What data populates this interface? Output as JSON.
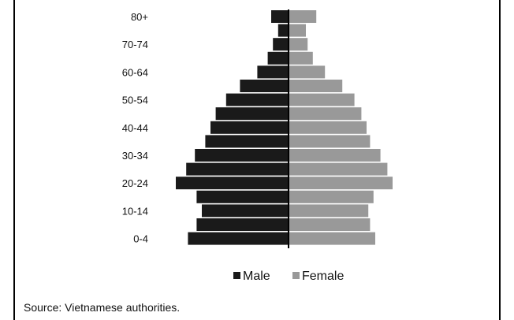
{
  "chart_data": {
    "type": "bar",
    "orientation": "horizontal",
    "subtype": "population-pyramid",
    "age_labels_shown": [
      "80+",
      "70-74",
      "60-64",
      "50-54",
      "40-44",
      "30-34",
      "20-24",
      "10-14",
      "0-4"
    ],
    "categories": [
      "80+",
      "75-79",
      "70-74",
      "65-69",
      "60-64",
      "55-59",
      "50-54",
      "45-49",
      "40-44",
      "35-39",
      "30-34",
      "25-29",
      "20-24",
      "15-19",
      "10-14",
      "5-9",
      "0-4"
    ],
    "series": [
      {
        "name": "Male",
        "color": "#1a1a1a",
        "values": [
          1.0,
          0.6,
          0.9,
          1.2,
          1.8,
          2.8,
          3.6,
          4.2,
          4.5,
          4.8,
          5.4,
          5.9,
          6.5,
          5.3,
          5.0,
          5.3,
          5.8
        ]
      },
      {
        "name": "Female",
        "color": "#999999",
        "values": [
          1.6,
          1.0,
          1.1,
          1.4,
          2.1,
          3.1,
          3.8,
          4.2,
          4.5,
          4.7,
          5.3,
          5.7,
          6.0,
          4.9,
          4.6,
          4.7,
          5.0
        ]
      }
    ],
    "legend": {
      "position": "bottom",
      "items": [
        "Male",
        "Female"
      ]
    },
    "title": "",
    "xlabel": "",
    "ylabel": ""
  },
  "source": "Source: Vietnamese authorities."
}
